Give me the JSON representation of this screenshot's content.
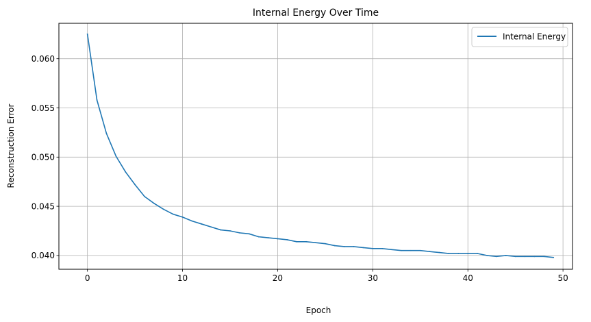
{
  "chart_data": {
    "type": "line",
    "title": "Internal Energy Over Time",
    "xlabel": "Epoch",
    "ylabel": "Reconstruction Error",
    "xlim": [
      -3,
      51
    ],
    "ylim": [
      0.0386,
      0.0636
    ],
    "xticks": [
      0,
      10,
      20,
      30,
      40,
      50
    ],
    "xtick_labels": [
      "0",
      "10",
      "20",
      "30",
      "40",
      "50"
    ],
    "yticks": [
      0.04,
      0.045,
      0.05,
      0.055,
      0.06
    ],
    "ytick_labels": [
      "0.040",
      "0.045",
      "0.050",
      "0.055",
      "0.060"
    ],
    "grid": true,
    "legend_position": "top-right",
    "series": [
      {
        "name": "Internal Energy",
        "color": "#1f77b4",
        "x": [
          0,
          1,
          2,
          3,
          4,
          5,
          6,
          7,
          8,
          9,
          10,
          11,
          12,
          13,
          14,
          15,
          16,
          17,
          18,
          19,
          20,
          21,
          22,
          23,
          24,
          25,
          26,
          27,
          28,
          29,
          30,
          31,
          32,
          33,
          34,
          35,
          36,
          37,
          38,
          39,
          40,
          41,
          42,
          43,
          44,
          45,
          46,
          47,
          48,
          49
        ],
        "values": [
          0.0625,
          0.0558,
          0.0524,
          0.0501,
          0.0485,
          0.0472,
          0.046,
          0.0453,
          0.0447,
          0.0442,
          0.0439,
          0.0435,
          0.0432,
          0.0429,
          0.0426,
          0.0425,
          0.0423,
          0.0422,
          0.0419,
          0.0418,
          0.0417,
          0.0416,
          0.0414,
          0.0414,
          0.0413,
          0.0412,
          0.041,
          0.0409,
          0.0409,
          0.0408,
          0.0407,
          0.0407,
          0.0406,
          0.0405,
          0.0405,
          0.0405,
          0.0404,
          0.0403,
          0.0402,
          0.0402,
          0.0402,
          0.0402,
          0.04,
          0.0399,
          0.04,
          0.0399,
          0.0399,
          0.0399,
          0.0399,
          0.0398
        ]
      }
    ]
  }
}
